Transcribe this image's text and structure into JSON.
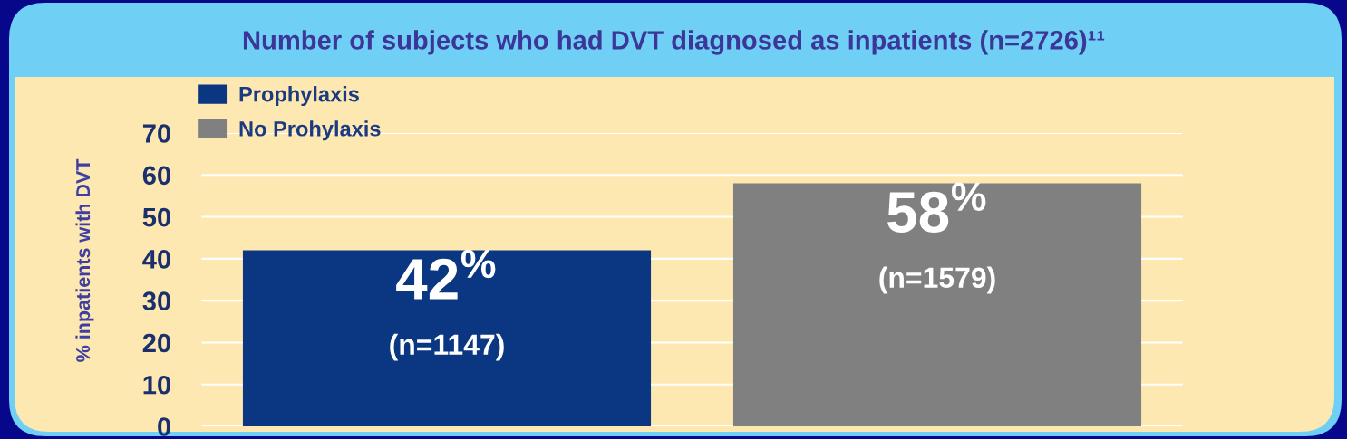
{
  "chart_data": {
    "type": "bar",
    "title": "Number of subjects who had DVT diagnosed as inpatients (n=2726)¹¹",
    "ylabel": "% inpatients with DVT",
    "categories": [
      null,
      null
    ],
    "series": [
      {
        "name": "Prophylaxis",
        "color": "#0a3682",
        "values": [
          42,
          null
        ],
        "value_labels": [
          "42$^{%}$\n(n=1147)",
          null
        ]
      },
      {
        "name": "No Prohylaxis",
        "color": "#808080",
        "values": [
          null,
          58
        ],
        "value_labels": [
          null,
          "58$^{%}$\n(n=1579)"
        ]
      }
    ],
    "ylim": [
      0,
      70
    ],
    "yticks": [
      0,
      10,
      20,
      30,
      40,
      50,
      60,
      70
    ],
    "grid": "y",
    "legend": "top left",
    "tick_labels": "y"
  }
}
